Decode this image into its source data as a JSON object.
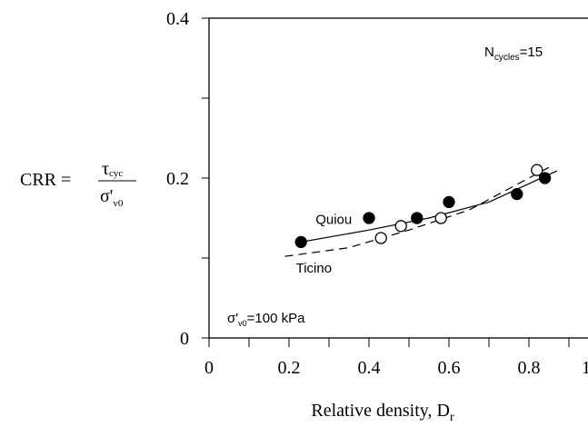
{
  "chart_data": {
    "type": "scatter",
    "x_label": {
      "main": "Relative density, D",
      "sub": "r"
    },
    "y_label": {
      "lhs": "CRR =",
      "num_main": "τ",
      "num_sub": "cyc",
      "den_main": "σ'",
      "den_sub": "v0"
    },
    "annotations": {
      "cycles": {
        "main": "N",
        "sub": "cycles",
        "rest": "=15"
      },
      "stress": {
        "main": "σ'",
        "sub": "v0",
        "rest": "=100 kPa"
      }
    },
    "xlim": [
      0,
      1
    ],
    "ylim": [
      0,
      0.4
    ],
    "xticks": [
      0,
      0.2,
      0.4,
      0.6,
      0.8,
      1
    ],
    "yticks": [
      0,
      0.2,
      0.4
    ],
    "xminor": [
      0.1,
      0.3,
      0.5,
      0.7,
      0.9
    ],
    "yminor": [
      0.1,
      0.3
    ],
    "series": [
      {
        "name": "Quiou",
        "color": "#000000",
        "marker": "filled",
        "x": [
          0.23,
          0.4,
          0.52,
          0.6,
          0.77,
          0.84
        ],
        "values": [
          0.12,
          0.15,
          0.15,
          0.17,
          0.18,
          0.2
        ],
        "fit_x": [
          0.23,
          0.4,
          0.55,
          0.7,
          0.87
        ],
        "fit_y": [
          0.12,
          0.135,
          0.15,
          0.17,
          0.209
        ],
        "dashed": false
      },
      {
        "name": "Ticino",
        "color": "#000000",
        "marker": "open",
        "x": [
          0.43,
          0.48,
          0.58,
          0.82
        ],
        "values": [
          0.125,
          0.14,
          0.15,
          0.21
        ],
        "fit_x": [
          0.19,
          0.35,
          0.5,
          0.65,
          0.86
        ],
        "fit_y": [
          0.102,
          0.113,
          0.135,
          0.16,
          0.216
        ],
        "dashed": true
      }
    ]
  }
}
